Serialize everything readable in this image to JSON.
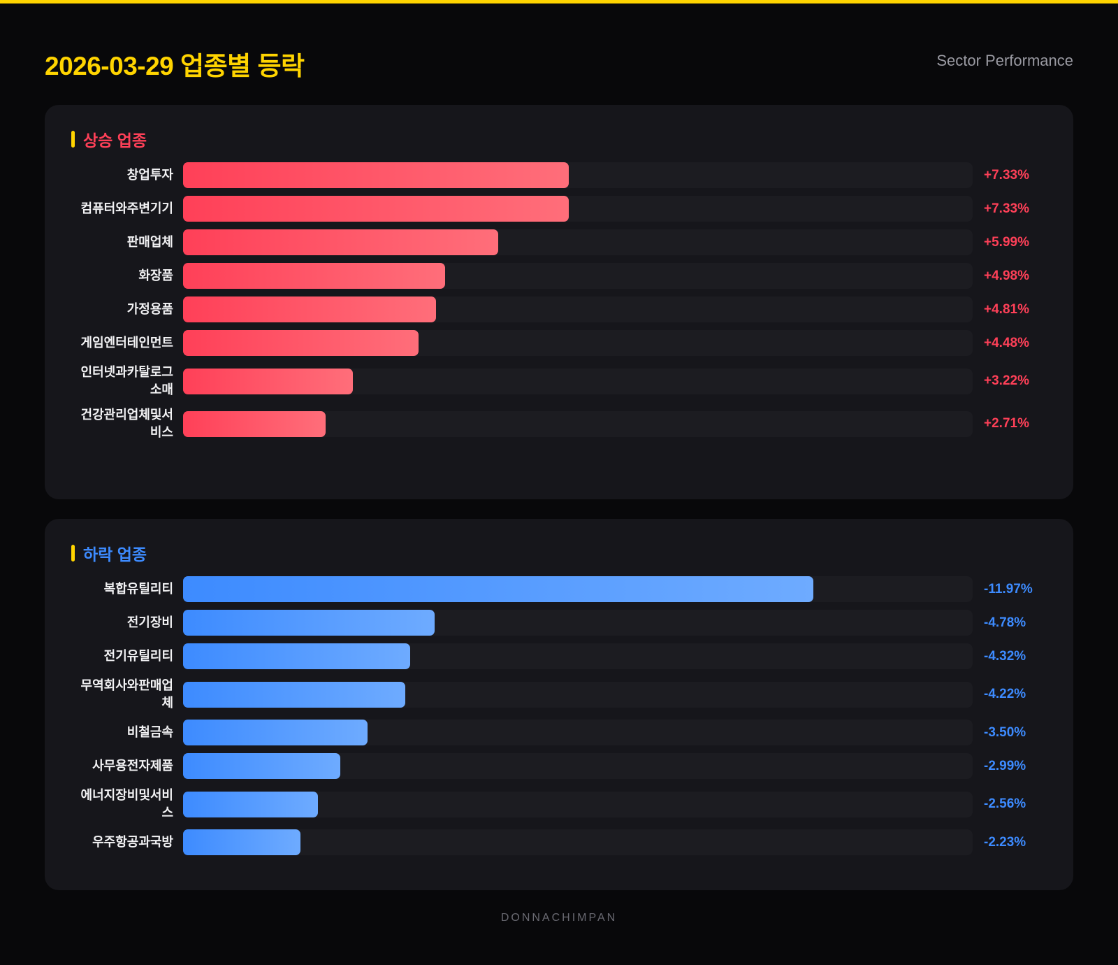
{
  "header": {
    "title": "2026-03-29 업종별 등락",
    "subtitle": "Sector Performance"
  },
  "footer": "DONNACHIMPAN",
  "colors": {
    "accent": "#ffd400",
    "up": "#ff4058",
    "up_end": "#ff6e7a",
    "down": "#3d8bff",
    "down_end": "#6eabff"
  },
  "chart_data": [
    {
      "type": "bar",
      "orientation": "horizontal",
      "title": "상승 업종",
      "categories": [
        "창업투자",
        "컴퓨터와주변기기",
        "판매업체",
        "화장품",
        "가정용품",
        "게임엔터테인먼트",
        "인터넷과카탈로그소매",
        "건강관리업체및서비스"
      ],
      "values": [
        7.33,
        7.33,
        5.99,
        4.98,
        4.81,
        4.48,
        3.22,
        2.71
      ],
      "labels": [
        "+7.33%",
        "+7.33%",
        "+5.99%",
        "+4.98%",
        "+4.81%",
        "+4.48%",
        "+3.22%",
        "+2.71%"
      ],
      "xlim": [
        0,
        15
      ]
    },
    {
      "type": "bar",
      "orientation": "horizontal",
      "title": "하락 업종",
      "categories": [
        "복합유틸리티",
        "전기장비",
        "전기유틸리티",
        "무역회사와판매업체",
        "비철금속",
        "사무용전자제품",
        "에너지장비및서비스",
        "우주항공과국방"
      ],
      "values": [
        -11.97,
        -4.78,
        -4.32,
        -4.22,
        -3.5,
        -2.99,
        -2.56,
        -2.23
      ],
      "labels": [
        "-11.97%",
        "-4.78%",
        "-4.32%",
        "-4.22%",
        "-3.50%",
        "-2.99%",
        "-2.56%",
        "-2.23%"
      ],
      "xlim": [
        0,
        15
      ]
    }
  ]
}
